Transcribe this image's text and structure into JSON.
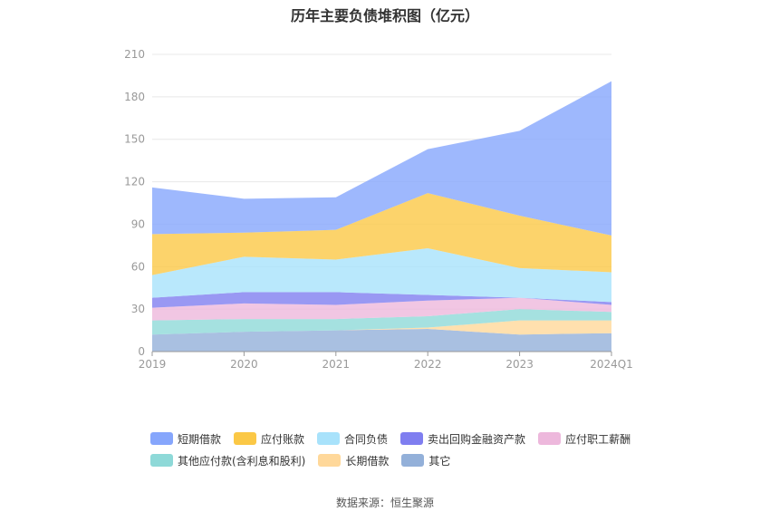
{
  "chart_data": {
    "type": "area",
    "stacked": true,
    "title": "历年主要负债堆积图（亿元）",
    "categories": [
      "2019",
      "2020",
      "2021",
      "2022",
      "2023",
      "2024Q1"
    ],
    "ylim": [
      0,
      210
    ],
    "yticks": [
      0,
      30,
      60,
      90,
      120,
      150,
      180,
      210
    ],
    "grid": true,
    "legend_position": "bottom",
    "series": [
      {
        "name": "其它",
        "color": "#93b0d9",
        "values": [
          12,
          14,
          15,
          16,
          12,
          13
        ]
      },
      {
        "name": "长期借款",
        "color": "#ffd89a",
        "values": [
          0,
          0,
          0,
          1,
          10,
          9
        ]
      },
      {
        "name": "其他应付款(含利息和股利)",
        "color": "#8ed9d8",
        "values": [
          10,
          9,
          8,
          8,
          8,
          6
        ]
      },
      {
        "name": "应付职工薪酬",
        "color": "#edb8dc",
        "values": [
          9,
          11,
          10,
          11,
          8,
          5
        ]
      },
      {
        "name": "卖出回购金融资产款",
        "color": "#7f7ef0",
        "values": [
          7,
          8,
          9,
          4,
          0,
          2
        ]
      },
      {
        "name": "合同负债",
        "color": "#a8e2fb",
        "values": [
          16,
          25,
          23,
          33,
          21,
          21
        ]
      },
      {
        "name": "应付账款",
        "color": "#fbc846",
        "values": [
          29,
          17,
          21,
          39,
          37,
          26
        ]
      },
      {
        "name": "短期借款",
        "color": "#86a6fc",
        "values": [
          33,
          24,
          23,
          31,
          60,
          109
        ]
      }
    ],
    "legend_order": [
      "短期借款",
      "应付账款",
      "合同负债",
      "卖出回购金融资产款",
      "应付职工薪酬",
      "其他应付款(含利息和股利)",
      "长期借款",
      "其它"
    ]
  },
  "source_text": "数据来源：恒生聚源"
}
